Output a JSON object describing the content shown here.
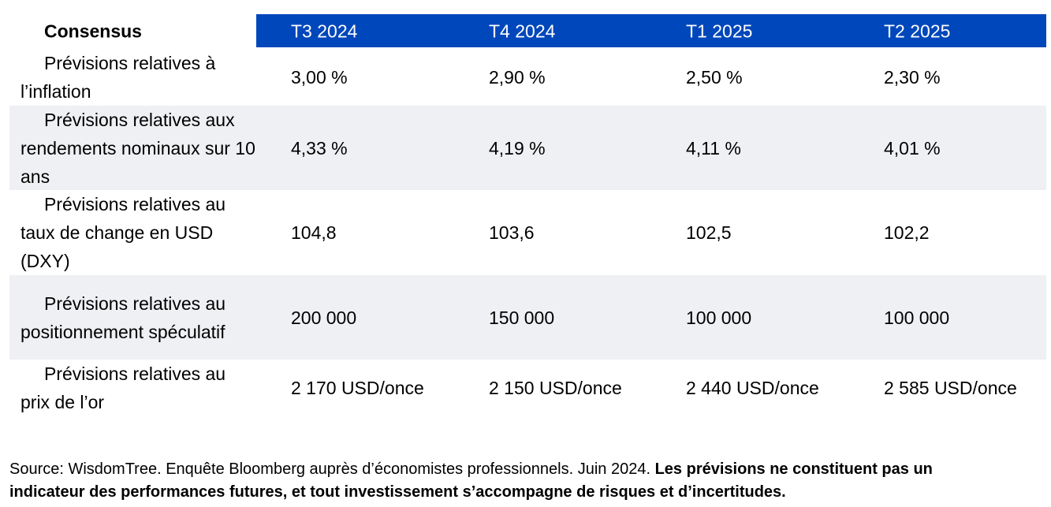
{
  "table": {
    "title": "Consensus",
    "columns": [
      "T3 2024",
      "T4 2024",
      "T1 2025",
      "T2 2025"
    ],
    "rows": [
      {
        "label": "Prévisions relatives à l’inflation",
        "values": [
          "3,00 %",
          "2,90 %",
          "2,50 %",
          "2,30 %"
        ]
      },
      {
        "label": "Prévisions relatives aux rendements nominaux sur 10 ans",
        "values": [
          "4,33 %",
          "4,19 %",
          "4,11 %",
          "4,01 %"
        ]
      },
      {
        "label": "Prévisions relatives au taux de change en USD (DXY)",
        "values": [
          "104,8",
          "103,6",
          "102,5",
          "102,2"
        ]
      },
      {
        "label": "Prévisions relatives au positionnement spéculatif",
        "values": [
          "200 000",
          "150 000",
          "100 000",
          "100 000"
        ]
      },
      {
        "label": "Prévisions relatives au prix de l’or",
        "values": [
          "2 170 USD/once",
          "2 150 USD/once",
          "2 440 USD/once",
          "2 585 USD/once"
        ]
      }
    ]
  },
  "footer": {
    "source": "Source: WisdomTree. Enquête Bloomberg auprès d’économistes professionnels. Juin 2024.",
    "disclaimer": "Les prévisions ne constituent pas un indicateur des performances futures, et tout investissement s’accompagne de risques et d’incertitudes."
  },
  "colors": {
    "header_bar": "#0047bb",
    "row_shade": "#eef0f3"
  }
}
